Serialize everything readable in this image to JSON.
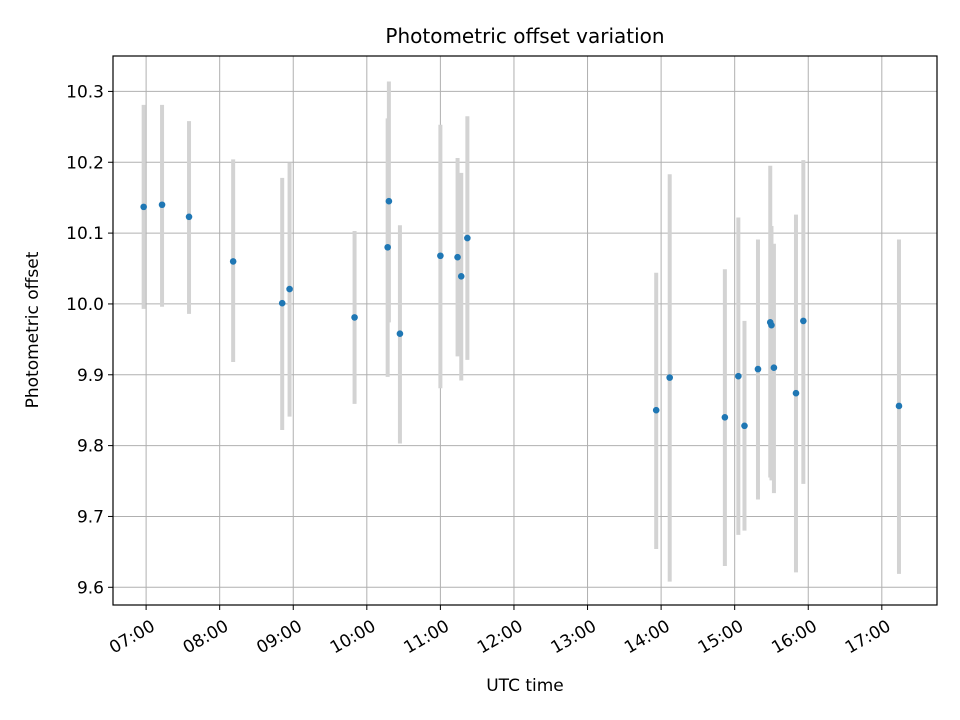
{
  "chart_data": {
    "type": "scatter",
    "title": "Photometric offset variation",
    "xlabel": "UTC time",
    "ylabel": "Photometric offset",
    "x_ticks": [
      "07:00",
      "08:00",
      "09:00",
      "10:00",
      "11:00",
      "12:00",
      "13:00",
      "14:00",
      "15:00",
      "16:00",
      "17:00"
    ],
    "y_ticks": [
      "9.6",
      "9.7",
      "9.8",
      "9.9",
      "10.0",
      "10.1",
      "10.2",
      "10.3"
    ],
    "xlim": [
      "06:33",
      "17:45"
    ],
    "ylim": [
      9.575,
      10.35
    ],
    "grid": true,
    "colors": {
      "points": "#1f77b4",
      "errorbars": "#d3d3d3",
      "grid": "#b0b0b0"
    },
    "series": [
      {
        "points": [
          {
            "t": "06:58",
            "y": 10.137,
            "err_lo": 9.993,
            "err_hi": 10.281
          },
          {
            "t": "07:13",
            "y": 10.14,
            "err_lo": 9.996,
            "err_hi": 10.281
          },
          {
            "t": "07:35",
            "y": 10.123,
            "err_lo": 9.986,
            "err_hi": 10.258
          },
          {
            "t": "08:11",
            "y": 10.06,
            "err_lo": 9.918,
            "err_hi": 10.204
          },
          {
            "t": "08:51",
            "y": 10.001,
            "err_lo": 9.822,
            "err_hi": 10.178
          },
          {
            "t": "08:57",
            "y": 10.021,
            "err_lo": 9.841,
            "err_hi": 10.199
          },
          {
            "t": "09:50",
            "y": 9.981,
            "err_lo": 9.859,
            "err_hi": 10.103
          },
          {
            "t": "10:17",
            "y": 10.08,
            "err_lo": 9.897,
            "err_hi": 10.262
          },
          {
            "t": "10:18",
            "y": 10.145,
            "err_lo": 9.974,
            "err_hi": 10.314
          },
          {
            "t": "10:27",
            "y": 9.958,
            "err_lo": 9.803,
            "err_hi": 10.111
          },
          {
            "t": "11:00",
            "y": 10.068,
            "err_lo": 9.881,
            "err_hi": 10.253
          },
          {
            "t": "11:14",
            "y": 10.066,
            "err_lo": 9.926,
            "err_hi": 10.206
          },
          {
            "t": "11:17",
            "y": 10.039,
            "err_lo": 9.892,
            "err_hi": 10.185
          },
          {
            "t": "11:22",
            "y": 10.093,
            "err_lo": 9.921,
            "err_hi": 10.265
          },
          {
            "t": "13:56",
            "y": 9.85,
            "err_lo": 9.654,
            "err_hi": 10.044
          },
          {
            "t": "14:07",
            "y": 9.896,
            "err_lo": 9.608,
            "err_hi": 10.183
          },
          {
            "t": "14:52",
            "y": 9.84,
            "err_lo": 9.63,
            "err_hi": 10.049
          },
          {
            "t": "15:03",
            "y": 9.898,
            "err_lo": 9.674,
            "err_hi": 10.122
          },
          {
            "t": "15:08",
            "y": 9.828,
            "err_lo": 9.68,
            "err_hi": 9.976
          },
          {
            "t": "15:19",
            "y": 9.908,
            "err_lo": 9.724,
            "err_hi": 10.091
          },
          {
            "t": "15:29",
            "y": 9.974,
            "err_lo": 9.755,
            "err_hi": 10.195
          },
          {
            "t": "15:30",
            "y": 9.97,
            "err_lo": 9.751,
            "err_hi": 10.11
          },
          {
            "t": "15:32",
            "y": 9.91,
            "err_lo": 9.733,
            "err_hi": 10.085
          },
          {
            "t": "15:50",
            "y": 9.874,
            "err_lo": 9.621,
            "err_hi": 10.126
          },
          {
            "t": "15:56",
            "y": 9.976,
            "err_lo": 9.746,
            "err_hi": 10.203
          },
          {
            "t": "17:14",
            "y": 9.856,
            "err_lo": 9.619,
            "err_hi": 10.091
          }
        ]
      }
    ]
  }
}
